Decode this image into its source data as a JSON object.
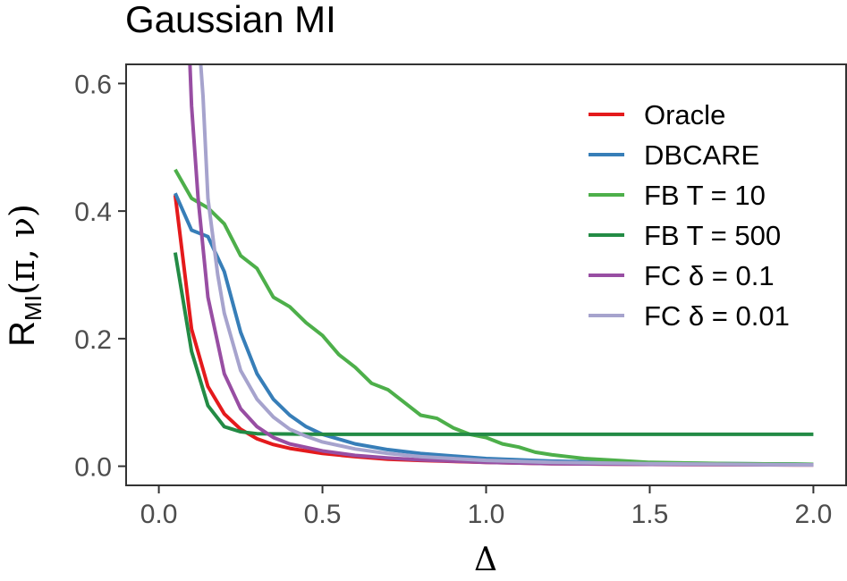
{
  "chart_data": {
    "type": "line",
    "title": "Gaussian MI",
    "xlabel": "Δ",
    "ylabel": {
      "main": "R",
      "sub": "MI",
      "args": "(π, ν)"
    },
    "xlim": [
      -0.1,
      2.1
    ],
    "ylim": [
      -0.03,
      0.63
    ],
    "x_ticks": [
      0.0,
      0.5,
      1.0,
      1.5,
      2.0
    ],
    "x_tick_labels": [
      "0.0",
      "0.5",
      "1.0",
      "1.5",
      "2.0"
    ],
    "y_ticks": [
      0.0,
      0.2,
      0.4,
      0.6
    ],
    "y_tick_labels": [
      "0.0",
      "0.2",
      "0.4",
      "0.6"
    ],
    "grid": false,
    "legend_position": "top-right",
    "series": [
      {
        "name": "Oracle",
        "color": "#e41a1c",
        "x": [
          0.05,
          0.1,
          0.15,
          0.2,
          0.25,
          0.3,
          0.35,
          0.4,
          0.5,
          0.6,
          0.7,
          0.8,
          1.0,
          1.2,
          1.5,
          2.0
        ],
        "y": [
          0.425,
          0.215,
          0.125,
          0.082,
          0.058,
          0.043,
          0.034,
          0.028,
          0.02,
          0.015,
          0.011,
          0.009,
          0.006,
          0.004,
          0.003,
          0.002
        ]
      },
      {
        "name": "DBCARE",
        "color": "#377eb8",
        "x": [
          0.05,
          0.1,
          0.15,
          0.2,
          0.25,
          0.3,
          0.35,
          0.4,
          0.45,
          0.5,
          0.6,
          0.7,
          0.8,
          1.0,
          1.2,
          1.5,
          2.0
        ],
        "y": [
          0.428,
          0.37,
          0.36,
          0.305,
          0.21,
          0.145,
          0.105,
          0.08,
          0.062,
          0.05,
          0.035,
          0.026,
          0.02,
          0.012,
          0.008,
          0.005,
          0.003
        ]
      },
      {
        "name": "FB T = 10",
        "color": "#4daf4a",
        "x": [
          0.05,
          0.1,
          0.15,
          0.2,
          0.25,
          0.3,
          0.35,
          0.4,
          0.45,
          0.5,
          0.55,
          0.6,
          0.65,
          0.7,
          0.75,
          0.8,
          0.85,
          0.9,
          0.95,
          1.0,
          1.05,
          1.1,
          1.15,
          1.2,
          1.3,
          1.4,
          1.5,
          1.75,
          2.0
        ],
        "y": [
          0.465,
          0.42,
          0.405,
          0.38,
          0.33,
          0.31,
          0.265,
          0.25,
          0.225,
          0.205,
          0.175,
          0.155,
          0.13,
          0.12,
          0.1,
          0.08,
          0.075,
          0.06,
          0.05,
          0.045,
          0.035,
          0.03,
          0.022,
          0.018,
          0.012,
          0.009,
          0.006,
          0.004,
          0.003
        ]
      },
      {
        "name": "FB T = 500",
        "color": "#238b45",
        "x": [
          0.05,
          0.1,
          0.15,
          0.2,
          0.25,
          0.3,
          0.5,
          1.0,
          1.5,
          2.0
        ],
        "y": [
          0.335,
          0.18,
          0.095,
          0.062,
          0.054,
          0.051,
          0.05,
          0.05,
          0.05,
          0.05
        ]
      },
      {
        "name": "FC δ = 0.1",
        "color": "#984ea3",
        "x": [
          0.095,
          0.1,
          0.12,
          0.15,
          0.2,
          0.25,
          0.3,
          0.35,
          0.4,
          0.5,
          0.6,
          0.7,
          0.8,
          1.0,
          1.2,
          1.5,
          2.0
        ],
        "y": [
          0.63,
          0.565,
          0.42,
          0.265,
          0.145,
          0.09,
          0.062,
          0.045,
          0.035,
          0.024,
          0.017,
          0.013,
          0.01,
          0.006,
          0.004,
          0.003,
          0.002
        ]
      },
      {
        "name": "FC δ = 0.01",
        "color": "#a6a3cd",
        "x": [
          0.128,
          0.135,
          0.15,
          0.18,
          0.2,
          0.25,
          0.3,
          0.35,
          0.4,
          0.45,
          0.5,
          0.6,
          0.7,
          0.8,
          1.0,
          1.2,
          1.5,
          2.0
        ],
        "y": [
          0.63,
          0.58,
          0.42,
          0.3,
          0.24,
          0.15,
          0.105,
          0.077,
          0.058,
          0.047,
          0.038,
          0.027,
          0.02,
          0.015,
          0.009,
          0.006,
          0.004,
          0.002
        ]
      }
    ]
  }
}
